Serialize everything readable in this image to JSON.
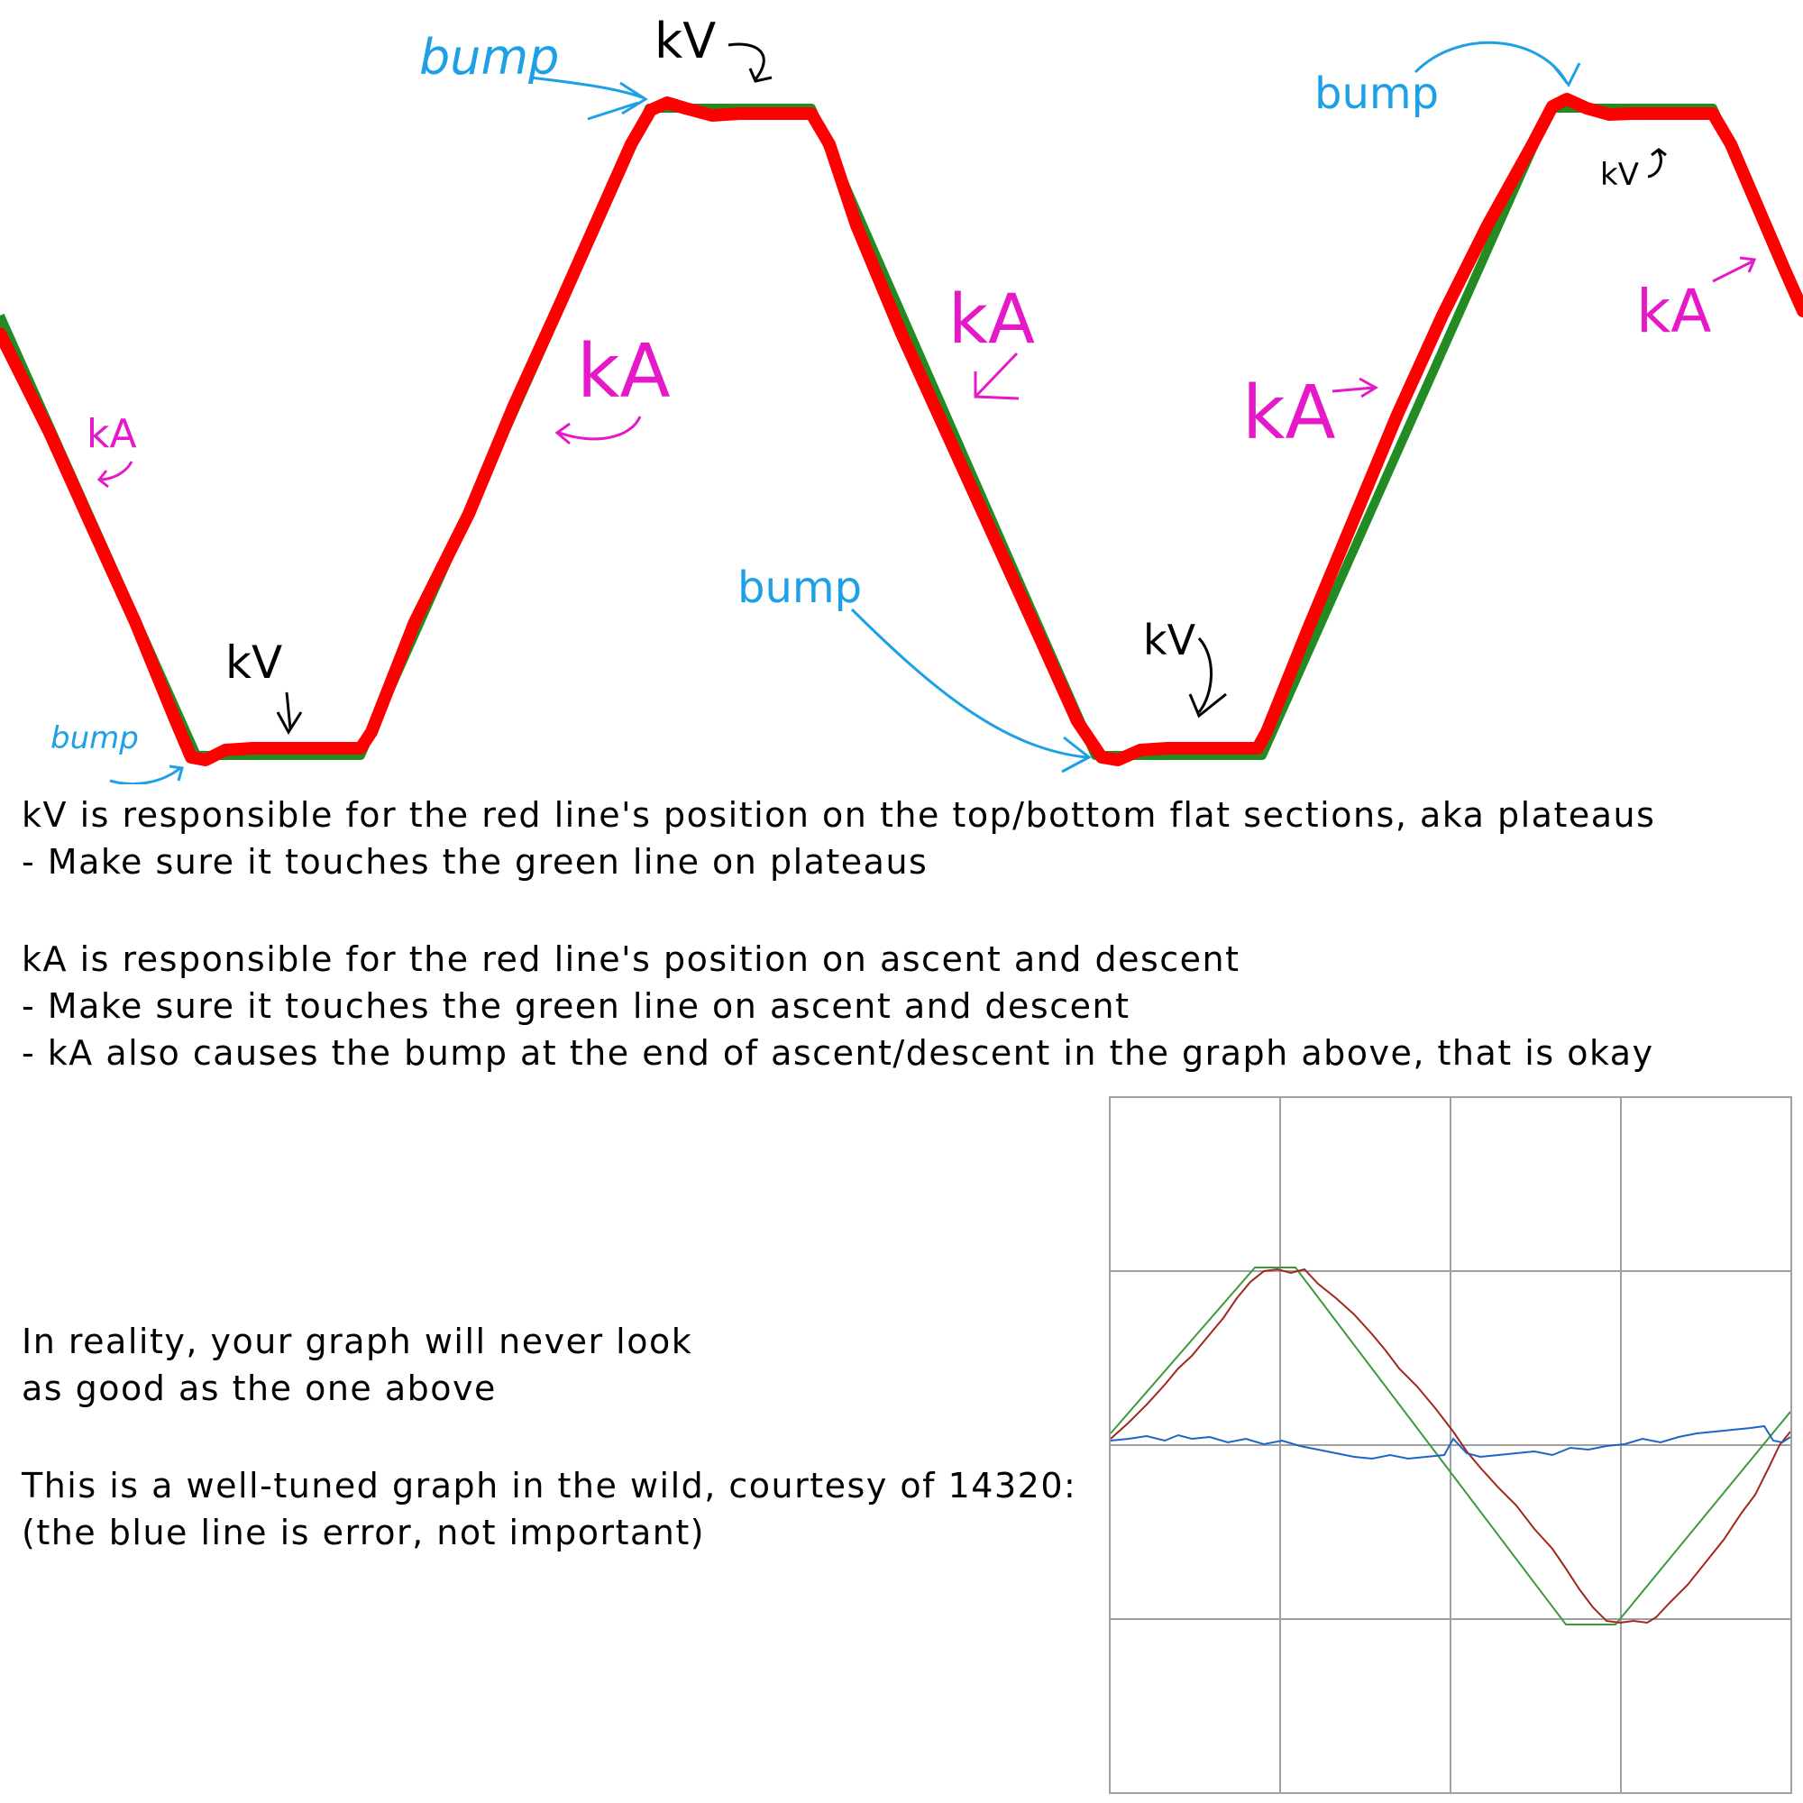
{
  "top_graph": {
    "annotations": {
      "bump_1": "bump",
      "bump_2": "bump",
      "bump_3": "bump",
      "bump_4": "bump",
      "kv_1": "kV",
      "kv_2": "kV",
      "kv_3": "kV",
      "kv_4": "kV",
      "ka_1": "kA",
      "ka_2": "kA",
      "ka_3": "kA",
      "ka_4": "kA",
      "ka_5": "kA"
    },
    "colors": {
      "red_line": "#ff0000",
      "green_line": "#228b22",
      "bump_label": "#1ea0e6",
      "ka_label": "#e619c8",
      "kv_label": "#000000"
    }
  },
  "notes": {
    "kv_line_1": "kV is responsible for the red line's position on the top/bottom flat sections, aka plateaus",
    "kv_line_2": "- Make sure it touches the green line on plateaus",
    "ka_line_1": "kA is responsible for the red line's position on ascent and descent",
    "ka_line_2": "- Make sure it touches the green line on ascent and descent",
    "ka_line_3": "- kA also causes the bump at the end of ascent/descent in the graph above, that is okay",
    "reality_line_1": "In reality, your graph will never look",
    "reality_line_2": "as good as the one above",
    "wild_line_1": "This is a well-tuned graph in the wild, courtesy of 14320:",
    "wild_line_2": "(the blue line is error, not important)"
  },
  "real_graph": {
    "colors": {
      "target": "#3c9a3c",
      "actual": "#a0281e",
      "error": "#1e64c8",
      "grid": "#a0a0a0"
    }
  }
}
